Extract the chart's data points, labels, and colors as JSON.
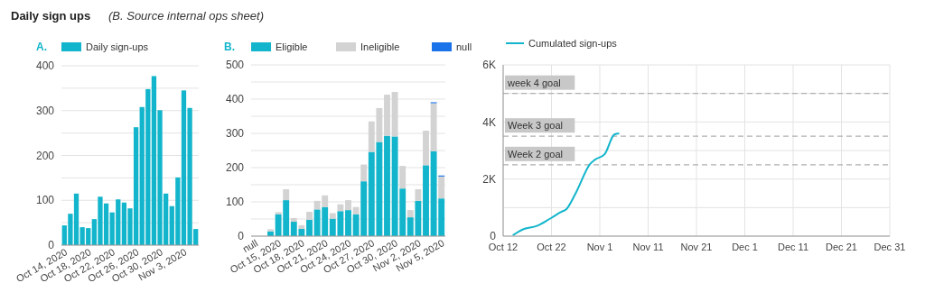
{
  "chart_data": [
    {
      "type": "bar",
      "title": "Daily sign ups",
      "subtitle": "(B. Source internal ops sheet)",
      "annotations": [
        "A."
      ],
      "categories": [
        "Oct 14, 2020",
        null,
        null,
        null,
        "Oct 18, 2020",
        null,
        null,
        null,
        "Oct 22, 2020",
        null,
        null,
        null,
        "Oct 26, 2020",
        null,
        null,
        null,
        "Oct 30, 2020",
        null,
        null,
        null,
        "Nov 3, 2020",
        null,
        null
      ],
      "series": [
        {
          "name": "Daily sign-ups",
          "color": "#12b5cb",
          "values": [
            44,
            70,
            115,
            40,
            38,
            58,
            108,
            93,
            73,
            102,
            95,
            82,
            263,
            308,
            348,
            377,
            301,
            115,
            87,
            151,
            345,
            306,
            36
          ]
        }
      ],
      "ylim": [
        0,
        400
      ],
      "yticks": [
        0,
        {
          "value": 50,
          "label": null
        },
        100,
        {
          "value": 150,
          "label": null
        },
        200,
        {
          "value": 250,
          "label": null
        },
        300,
        {
          "value": 350,
          "label": null
        },
        400
      ],
      "grid": "y",
      "legend": "top"
    },
    {
      "type": "bar",
      "title": "B.",
      "stacked": true,
      "categories": [
        "null",
        null,
        null,
        "Oct 15, 2020",
        null,
        null,
        "Oct 18, 2020",
        null,
        null,
        "Oct 21, 2020",
        null,
        null,
        "Oct 24, 2020",
        null,
        null,
        "Oct 27, 2020",
        null,
        null,
        "Oct 30, 2020",
        null,
        null,
        "Nov 2, 2020",
        null,
        null,
        "Nov 5, 2020"
      ],
      "series": [
        {
          "name": "Eligible",
          "color": "#12b5cb",
          "values": [
            null,
            null,
            14,
            64,
            105,
            42,
            21,
            48,
            78,
            85,
            51,
            73,
            76,
            64,
            160,
            246,
            275,
            293,
            291,
            139,
            55,
            103,
            207,
            248,
            110
          ]
        },
        {
          "name": "Ineligible",
          "color": "#d3d3d3",
          "values": [
            null,
            null,
            6,
            6,
            32,
            11,
            11,
            23,
            25,
            34,
            16,
            20,
            29,
            21,
            49,
            89,
            99,
            120,
            130,
            66,
            21,
            34,
            101,
            140,
            64
          ]
        },
        {
          "name": "null",
          "color": "#1a73e8",
          "values": [
            null,
            null,
            null,
            null,
            null,
            null,
            null,
            null,
            null,
            null,
            null,
            null,
            null,
            null,
            null,
            null,
            null,
            null,
            null,
            null,
            null,
            null,
            null,
            3,
            3
          ]
        }
      ],
      "ylim": [
        0,
        500
      ],
      "yticks": [
        0,
        {
          "value": 50,
          "label": null
        },
        100,
        {
          "value": 150,
          "label": null
        },
        200,
        {
          "value": 250,
          "label": null
        },
        300,
        {
          "value": 350,
          "label": null
        },
        400,
        {
          "value": 450,
          "label": null
        },
        500
      ],
      "grid": "y",
      "legend": "top"
    },
    {
      "type": "line",
      "series": [
        {
          "name": "Cumulated sign-ups",
          "color": "#12b5cb",
          "x": [
            "2020-10-14",
            "2020-10-16",
            "2020-10-19",
            "2020-10-21",
            "2020-10-22",
            "2020-10-24",
            "2020-10-25",
            "2020-10-27",
            "2020-10-30",
            "2020-10-31",
            "2020-11-02",
            "2020-11-04",
            "2020-11-05"
          ],
          "values": [
            30,
            230,
            360,
            540,
            640,
            850,
            930,
            1500,
            2530,
            2680,
            2870,
            3560,
            3600
          ]
        }
      ],
      "xlim": [
        "2020-10-12",
        "2020-12-31"
      ],
      "xticks": [
        {
          "value": "2020-10-12",
          "label": "Oct 12"
        },
        {
          "value": "2020-10-22",
          "label": "Oct 22"
        },
        {
          "value": "2020-11-01",
          "label": "Nov 1"
        },
        {
          "value": "2020-11-11",
          "label": "Nov 11"
        },
        {
          "value": "2020-11-21",
          "label": "Nov 21"
        },
        {
          "value": "2020-12-01",
          "label": "Dec 1"
        },
        {
          "value": "2020-12-11",
          "label": "Dec 11"
        },
        {
          "value": "2020-12-21",
          "label": "Dec 21"
        },
        {
          "value": "2020-12-31",
          "label": "Dec 31"
        }
      ],
      "ylim": [
        0,
        6000
      ],
      "yticks": [
        {
          "value": 0,
          "label": "0"
        },
        {
          "value": 1000,
          "label": null
        },
        {
          "value": 2000,
          "label": "2K"
        },
        {
          "value": 3000,
          "label": null
        },
        {
          "value": 4000,
          "label": "4K"
        },
        {
          "value": 5000,
          "label": null
        },
        {
          "value": 6000,
          "label": "6K"
        }
      ],
      "ref_lines": [
        {
          "axis": "y",
          "value": 5000,
          "label": "week 4 goal",
          "color": "#b0b0b0",
          "line_style": "dashed"
        },
        {
          "axis": "y",
          "value": 3500,
          "label": "Week 3 goal",
          "color": "#b0b0b0",
          "line_style": "dashed"
        },
        {
          "axis": "y",
          "value": 2500,
          "label": "Week 2 goal",
          "color": "#b0b0b0",
          "line_style": "dashed"
        }
      ],
      "grid": true,
      "legend": "top",
      "line_style": "solid",
      "marker": "none"
    }
  ]
}
